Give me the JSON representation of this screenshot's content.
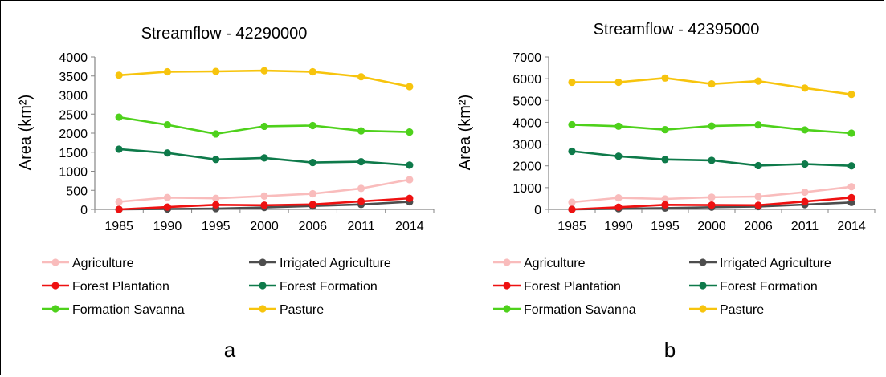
{
  "chart_data": [
    {
      "type": "line",
      "title": "Streamflow - 42290000",
      "xlabel": "",
      "ylabel": "Area (km²)",
      "panel_label": "a",
      "categories": [
        "1985",
        "1990",
        "1995",
        "2000",
        "2006",
        "2011",
        "2014"
      ],
      "ylim": [
        0,
        4000
      ],
      "yticks": [
        "0",
        "500",
        "1000",
        "1500",
        "2000",
        "2500",
        "3000",
        "3500",
        "4000"
      ],
      "grid": false,
      "legend_position": "bottom",
      "series": [
        {
          "name": "Agriculture",
          "color": "#f9bcbc",
          "values": [
            200,
            310,
            290,
            350,
            410,
            550,
            780
          ]
        },
        {
          "name": "Irrigated Agriculture",
          "color": "#4d4d4d",
          "values": [
            0,
            10,
            20,
            50,
            90,
            130,
            200
          ]
        },
        {
          "name": "Forest Plantation",
          "color": "#ee1111",
          "values": [
            0,
            60,
            120,
            110,
            130,
            210,
            290
          ]
        },
        {
          "name": "Forest Formation",
          "color": "#0e7a4a",
          "values": [
            1580,
            1480,
            1310,
            1350,
            1230,
            1250,
            1160
          ]
        },
        {
          "name": "Formation Savanna",
          "color": "#4ed11b",
          "values": [
            2420,
            2220,
            1980,
            2180,
            2200,
            2060,
            2030
          ]
        },
        {
          "name": "Pasture",
          "color": "#f7c40d",
          "values": [
            3520,
            3610,
            3620,
            3640,
            3610,
            3480,
            3220
          ]
        }
      ]
    },
    {
      "type": "line",
      "title": "Streamflow - 42395000",
      "xlabel": "",
      "ylabel": "Area (km²)",
      "panel_label": "b",
      "categories": [
        "1985",
        "1990",
        "1995",
        "2000",
        "2006",
        "2011",
        "2014"
      ],
      "ylim": [
        0,
        7000
      ],
      "yticks": [
        "0",
        "1000",
        "2000",
        "3000",
        "4000",
        "5000",
        "6000",
        "7000"
      ],
      "grid": false,
      "legend_position": "bottom",
      "series": [
        {
          "name": "Agriculture",
          "color": "#f9bcbc",
          "values": [
            330,
            530,
            480,
            560,
            590,
            790,
            1040
          ]
        },
        {
          "name": "Irrigated Agriculture",
          "color": "#4d4d4d",
          "values": [
            0,
            30,
            60,
            100,
            130,
            220,
            320
          ]
        },
        {
          "name": "Forest Plantation",
          "color": "#ee1111",
          "values": [
            0,
            100,
            210,
            200,
            190,
            360,
            540
          ]
        },
        {
          "name": "Forest Formation",
          "color": "#0e7a4a",
          "values": [
            2670,
            2440,
            2290,
            2250,
            2010,
            2080,
            2000
          ]
        },
        {
          "name": "Formation Savanna",
          "color": "#4ed11b",
          "values": [
            3890,
            3820,
            3660,
            3830,
            3880,
            3650,
            3500
          ]
        },
        {
          "name": "Pasture",
          "color": "#f7c40d",
          "values": [
            5840,
            5840,
            6030,
            5760,
            5890,
            5570,
            5280
          ]
        }
      ]
    }
  ]
}
